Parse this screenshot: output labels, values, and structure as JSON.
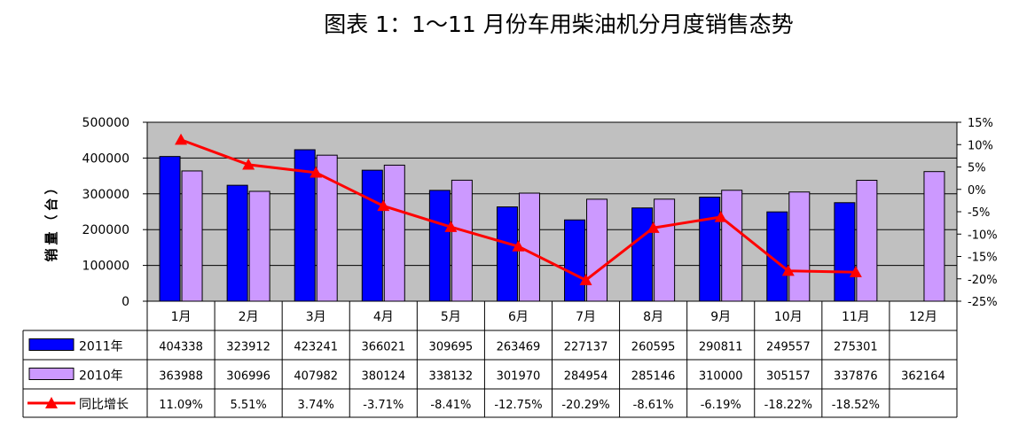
{
  "chart_data": {
    "type": "bar",
    "title": "图表 1：1～11 月份车用柴油机分月度销售态势",
    "ylabel": "销量（台）",
    "ylim": [
      0,
      500000
    ],
    "y_ticks": [
      0,
      100000,
      200000,
      300000,
      400000,
      500000
    ],
    "y2lim": [
      -25,
      15
    ],
    "y2_ticks": [
      "15%",
      "10%",
      "5%",
      "0%",
      "-5%",
      "-10%",
      "-15%",
      "-20%",
      "-25%"
    ],
    "grid": true,
    "categories": [
      "1月",
      "2月",
      "3月",
      "4月",
      "5月",
      "6月",
      "7月",
      "8月",
      "9月",
      "10月",
      "11月",
      "12月"
    ],
    "series": [
      {
        "name": "2011年",
        "type": "bar",
        "color": "#0000ff",
        "values": [
          404338,
          323912,
          423241,
          366021,
          309695,
          263469,
          227137,
          260595,
          290811,
          249557,
          275301,
          null
        ],
        "table_labels": [
          "404338",
          "323912",
          "423241",
          "366021",
          "309695",
          "263469",
          "227137",
          "260595",
          "290811",
          "249557",
          "275301",
          ""
        ]
      },
      {
        "name": "2010年",
        "type": "bar",
        "color": "#cc99ff",
        "values": [
          363988,
          306996,
          407982,
          380124,
          338132,
          301970,
          284954,
          285146,
          310000,
          305157,
          337876,
          362164
        ],
        "table_labels": [
          "363988",
          "306996",
          "407982",
          "380124",
          "338132",
          "301970",
          "284954",
          "285146",
          "310000",
          "305157",
          "337876",
          "362164"
        ]
      },
      {
        "name": "同比增长",
        "type": "line",
        "axis": "secondary",
        "color": "#ff0000",
        "values": [
          11.09,
          5.51,
          3.74,
          -3.71,
          -8.41,
          -12.75,
          -20.29,
          -8.61,
          -6.19,
          -18.22,
          -18.52,
          null
        ],
        "table_labels": [
          "11.09%",
          "5.51%",
          "3.74%",
          "-3.71%",
          "-8.41%",
          "-12.75%",
          "-20.29%",
          "-8.61%",
          "-6.19%",
          "-18.22%",
          "-18.52%",
          ""
        ]
      }
    ],
    "colors": {
      "plot_background": "#c0c0c0",
      "gridline": "#000000"
    }
  }
}
